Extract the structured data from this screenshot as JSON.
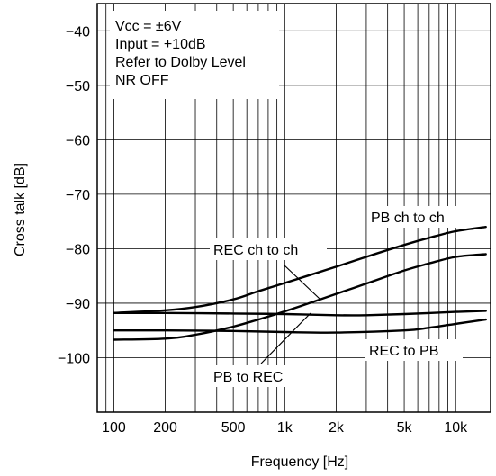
{
  "chart_data": {
    "type": "line",
    "xlabel": "Frequency [Hz]",
    "ylabel": "Cross talk [dB]",
    "x_scale": "log",
    "xlim": [
      80,
      16000
    ],
    "ylim": [
      -110,
      -35
    ],
    "grid": true,
    "x_ticks": [
      {
        "value": 100,
        "label": "100"
      },
      {
        "value": 200,
        "label": "200"
      },
      {
        "value": 500,
        "label": "500"
      },
      {
        "value": 1000,
        "label": "1k"
      },
      {
        "value": 2000,
        "label": "2k"
      },
      {
        "value": 5000,
        "label": "5k"
      },
      {
        "value": 10000,
        "label": "10k"
      }
    ],
    "y_ticks": [
      {
        "value": -40,
        "label": "−40"
      },
      {
        "value": -50,
        "label": "−50"
      },
      {
        "value": -60,
        "label": "−60"
      },
      {
        "value": -70,
        "label": "−70"
      },
      {
        "value": -80,
        "label": "−80"
      },
      {
        "value": -90,
        "label": "−90"
      },
      {
        "value": -100,
        "label": "−100"
      }
    ],
    "conditions": [
      "Vcc = ±6V",
      "Input = +10dB",
      "Refer to Dolby Level",
      "NR OFF"
    ],
    "series": [
      {
        "name": "PB ch to ch",
        "x": [
          100,
          200,
          300,
          500,
          700,
          1000,
          2000,
          3000,
          5000,
          7000,
          10000,
          15000
        ],
        "y": [
          -91.8,
          -91.3,
          -90.7,
          -89.3,
          -87.8,
          -86.3,
          -83.3,
          -81.5,
          -79.3,
          -78.0,
          -76.8,
          -76.0
        ]
      },
      {
        "name": "REC ch to ch",
        "x": [
          100,
          200,
          300,
          500,
          700,
          1000,
          2000,
          3000,
          5000,
          7000,
          10000,
          15000
        ],
        "y": [
          -96.7,
          -96.5,
          -95.8,
          -94.3,
          -93.0,
          -91.5,
          -88.3,
          -86.4,
          -84.0,
          -82.7,
          -81.5,
          -81.0
        ]
      },
      {
        "name": "PB to REC",
        "x": [
          100,
          200,
          500,
          1000,
          2000,
          3000,
          5000,
          10000,
          15000
        ],
        "y": [
          -91.8,
          -91.8,
          -91.9,
          -92.0,
          -92.2,
          -92.2,
          -92.0,
          -91.6,
          -91.4
        ]
      },
      {
        "name": "REC to PB",
        "x": [
          100,
          200,
          500,
          1000,
          2000,
          5000,
          7000,
          10000,
          15000
        ],
        "y": [
          -95.0,
          -95.0,
          -95.1,
          -95.3,
          -95.4,
          -95.0,
          -94.5,
          -93.8,
          -93.0
        ]
      }
    ]
  }
}
